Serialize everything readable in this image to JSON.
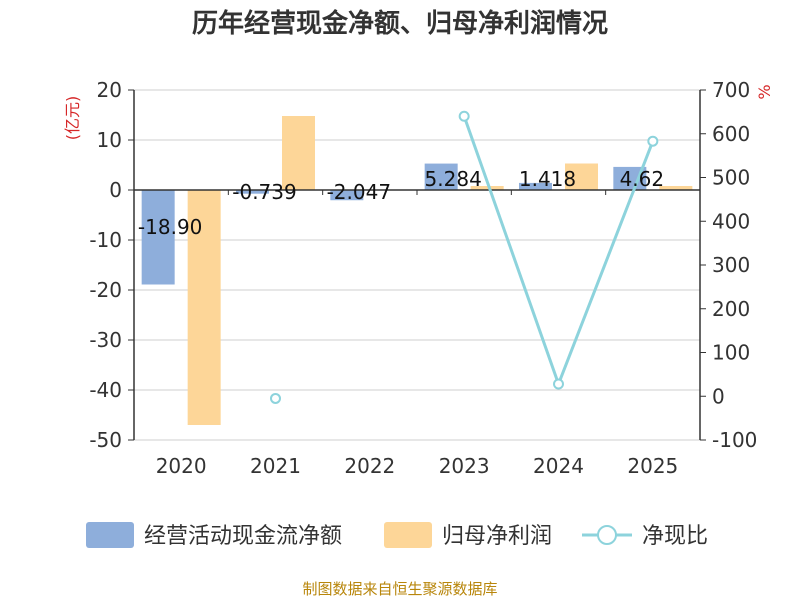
{
  "chart_data": {
    "type": "bar",
    "title": "历年经营现金净额、归母净利润情况",
    "categories": [
      "2020",
      "2021",
      "2022",
      "2023",
      "2024",
      "2025"
    ],
    "left_axis": {
      "unit": "(亿元)",
      "ylim": [
        -50,
        20
      ],
      "ticks": [
        "20",
        "10",
        "0",
        "-10",
        "-20",
        "-30",
        "-40",
        "-50"
      ]
    },
    "right_axis": {
      "unit": "%",
      "ylim": [
        -100,
        700
      ],
      "ticks": [
        "700",
        "600",
        "500",
        "400",
        "300",
        "200",
        "100",
        "0",
        "-100"
      ]
    },
    "series": [
      {
        "name": "经营活动现金流净额",
        "type": "bar",
        "axis": "left",
        "color": "#8eaedb",
        "values": [
          -18.9,
          -0.739,
          -2.047,
          5.284,
          1.418,
          4.62
        ],
        "labels": [
          "-18.90",
          "-0.739",
          "-2.047",
          "5.284",
          "1.418",
          "4.62"
        ]
      },
      {
        "name": "归母净利润",
        "type": "bar",
        "axis": "left",
        "color": "#fdd698",
        "values": [
          -47.0,
          14.8,
          0.1,
          0.8,
          5.3,
          0.8
        ]
      },
      {
        "name": "净现比",
        "type": "line",
        "axis": "right",
        "color": "#8dd3dc",
        "values": [
          null,
          -5,
          null,
          640,
          28,
          583
        ]
      }
    ],
    "source": "制图数据来自恒生聚源数据库"
  }
}
